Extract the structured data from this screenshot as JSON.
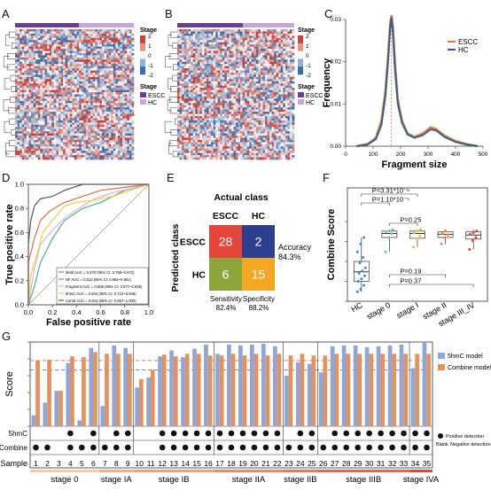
{
  "panels": {
    "A": {
      "label": "A",
      "legend_title": "Stage",
      "scale_ticks": [
        "2",
        "1",
        "0",
        "-1",
        "-2"
      ],
      "group_title": "Stage",
      "groups": [
        "ESCC",
        "HC"
      ]
    },
    "B": {
      "label": "B",
      "legend_title": "Stage",
      "scale_ticks": [
        "2",
        "1",
        "0",
        "-1",
        "-2"
      ],
      "group_title": "Stage",
      "groups": [
        "ESCC",
        "HC"
      ]
    },
    "C": {
      "label": "C"
    },
    "D": {
      "label": "D"
    },
    "E": {
      "label": "E"
    },
    "F": {
      "label": "F"
    },
    "G": {
      "label": "G"
    }
  },
  "colors": {
    "escc": "#e8762f",
    "hc": "#2e5c86",
    "stage_escc": "#6b3f8f",
    "stage_hc": "#c9a6d6",
    "hm_red": "#c8443a",
    "hm_blue": "#3c6ea8",
    "g_5hmc": "#8fa6da",
    "g_combine": "#e3925c"
  },
  "chart_data": [
    {
      "panel": "C",
      "type": "line",
      "xlabel": "Fragment size",
      "ylabel": "Frequency",
      "xlim": [
        0,
        500
      ],
      "ylim": [
        0,
        0.03
      ],
      "xticks": [
        "0",
        "100",
        "200",
        "300",
        "400",
        "500"
      ],
      "yticks": [
        "0.00",
        "0.01",
        "0.02",
        "0.03"
      ],
      "series": [
        {
          "name": "ESCC",
          "color": "#e8762f",
          "points": [
            [
              40,
              0
            ],
            [
              80,
              0.0005
            ],
            [
              110,
              0.002
            ],
            [
              130,
              0.006
            ],
            [
              145,
              0.013
            ],
            [
              155,
              0.022
            ],
            [
              162,
              0.029
            ],
            [
              167,
              0.031
            ],
            [
              172,
              0.028
            ],
            [
              180,
              0.019
            ],
            [
              190,
              0.011
            ],
            [
              205,
              0.006
            ],
            [
              225,
              0.003
            ],
            [
              250,
              0.0022
            ],
            [
              280,
              0.003
            ],
            [
              310,
              0.0045
            ],
            [
              330,
              0.004
            ],
            [
              360,
              0.0025
            ],
            [
              400,
              0.0012
            ],
            [
              440,
              0.0005
            ],
            [
              480,
              0
            ]
          ]
        },
        {
          "name": "HC",
          "color": "#2e5c86",
          "points": [
            [
              40,
              0
            ],
            [
              80,
              0.0004
            ],
            [
              110,
              0.0017
            ],
            [
              130,
              0.005
            ],
            [
              145,
              0.012
            ],
            [
              155,
              0.021
            ],
            [
              162,
              0.028
            ],
            [
              167,
              0.0305
            ],
            [
              172,
              0.027
            ],
            [
              180,
              0.018
            ],
            [
              190,
              0.01
            ],
            [
              205,
              0.0055
            ],
            [
              225,
              0.0028
            ],
            [
              250,
              0.002
            ],
            [
              280,
              0.0026
            ],
            [
              310,
              0.004
            ],
            [
              330,
              0.0037
            ],
            [
              360,
              0.0022
            ],
            [
              400,
              0.001
            ],
            [
              440,
              0.0004
            ],
            [
              480,
              0
            ]
          ]
        }
      ]
    },
    {
      "panel": "D",
      "type": "line",
      "xlabel": "False positive rate",
      "ylabel": "True positive rate",
      "xlim": [
        0,
        1
      ],
      "ylim": [
        0,
        1
      ],
      "xticks": [
        "0.0",
        "0.2",
        "0.4",
        "0.6",
        "0.8",
        "1.0"
      ],
      "yticks": [
        "0.0",
        "0.2",
        "0.4",
        "0.6",
        "0.8",
        "1.0"
      ],
      "series": [
        {
          "name": "Motif AUC = 0.870 (95% CI: 0.768~0.972)",
          "color": "#e06a4a",
          "points": [
            [
              0,
              0
            ],
            [
              0,
              0.35
            ],
            [
              0.05,
              0.55
            ],
            [
              0.1,
              0.7
            ],
            [
              0.18,
              0.78
            ],
            [
              0.3,
              0.85
            ],
            [
              0.45,
              0.9
            ],
            [
              0.6,
              0.95
            ],
            [
              1,
              1
            ]
          ]
        },
        {
          "name": "NF AUC = 0.813 (95% CI: 0.665~0.961)",
          "color": "#4caf8a",
          "points": [
            [
              0,
              0
            ],
            [
              0.05,
              0.15
            ],
            [
              0.1,
              0.35
            ],
            [
              0.2,
              0.55
            ],
            [
              0.3,
              0.7
            ],
            [
              0.45,
              0.8
            ],
            [
              0.6,
              0.85
            ],
            [
              0.8,
              0.95
            ],
            [
              1,
              1
            ]
          ]
        },
        {
          "name": "Fragment AUC = 0.806 (95% CI: 0.677~0.936)",
          "color": "#d6b3e0",
          "points": [
            [
              0,
              0
            ],
            [
              0.05,
              0.3
            ],
            [
              0.1,
              0.5
            ],
            [
              0.2,
              0.62
            ],
            [
              0.3,
              0.72
            ],
            [
              0.45,
              0.82
            ],
            [
              0.55,
              0.88
            ],
            [
              0.7,
              0.93
            ],
            [
              1,
              1
            ]
          ]
        },
        {
          "name": "5hmC AUC = 0.834 (95% CI: 0.723~0.945)",
          "color": "#f2cf3b",
          "points": [
            [
              0,
              0
            ],
            [
              0.02,
              0.25
            ],
            [
              0.08,
              0.45
            ],
            [
              0.12,
              0.6
            ],
            [
              0.2,
              0.7
            ],
            [
              0.3,
              0.82
            ],
            [
              0.4,
              0.85
            ],
            [
              0.55,
              0.87
            ],
            [
              0.7,
              0.9
            ],
            [
              1,
              1
            ]
          ]
        },
        {
          "name": "Comb AUC = 0.934 (95% CI: 0.867~1.000)",
          "color": "#555555",
          "points": [
            [
              0,
              0
            ],
            [
              0,
              0.5
            ],
            [
              0.02,
              0.7
            ],
            [
              0.05,
              0.82
            ],
            [
              0.1,
              0.88
            ],
            [
              0.2,
              0.9
            ],
            [
              0.3,
              0.95
            ],
            [
              0.45,
              1
            ],
            [
              1,
              1
            ]
          ]
        }
      ]
    },
    {
      "panel": "E",
      "type": "table",
      "title": "Actual class",
      "row_title": "Predicted class",
      "columns": [
        "ESCC",
        "HC"
      ],
      "rows": [
        "ESCC",
        "HC"
      ],
      "cells": [
        [
          28,
          2
        ],
        [
          6,
          15
        ]
      ],
      "cell_colors": [
        [
          "#e5463b",
          "#2f3f8f"
        ],
        [
          "#8aa63b",
          "#f5a623"
        ]
      ],
      "accuracy_label": "Accuracy",
      "accuracy": "84.3%",
      "sensitivity_label": "Sensitivity",
      "sensitivity": "82.4%",
      "specificity_label": "Specificity",
      "specificity": "88.2%"
    },
    {
      "panel": "F",
      "type": "scatter",
      "ylabel": "Combine Score",
      "categories": [
        "HC",
        "stage 0",
        "stage I",
        "stage II",
        "stage III_IV"
      ],
      "ylim": [
        0,
        1
      ],
      "yticks": [
        "0.00",
        "0.25",
        "0.50",
        "0.75",
        "1.00"
      ],
      "boxes": [
        {
          "q1": 0.25,
          "median": 0.37,
          "q3": 0.5,
          "low": 0.12,
          "high": 0.8,
          "color": "#3b8ecf",
          "points": [
            0.12,
            0.15,
            0.2,
            0.25,
            0.28,
            0.32,
            0.35,
            0.38,
            0.42,
            0.48,
            0.55,
            0.62,
            0.72,
            0.8
          ]
        },
        {
          "q1": 0.8,
          "median": 0.85,
          "q3": 0.88,
          "low": 0.62,
          "high": 0.9,
          "color": "#7cc48a",
          "points": [
            0.62,
            0.8,
            0.85,
            0.87,
            0.88,
            0.9
          ]
        },
        {
          "q1": 0.79,
          "median": 0.85,
          "q3": 0.88,
          "low": 0.68,
          "high": 0.9,
          "color": "#f2c23a",
          "points": [
            0.68,
            0.78,
            0.82,
            0.86,
            0.88,
            0.9
          ]
        },
        {
          "q1": 0.8,
          "median": 0.84,
          "q3": 0.87,
          "low": 0.72,
          "high": 0.9,
          "color": "#f0873a",
          "points": [
            0.72,
            0.8,
            0.83,
            0.85,
            0.88
          ]
        },
        {
          "q1": 0.78,
          "median": 0.83,
          "q3": 0.87,
          "low": 0.65,
          "high": 0.9,
          "color": "#d9483b",
          "points": [
            0.65,
            0.76,
            0.8,
            0.84,
            0.86,
            0.88
          ]
        }
      ],
      "comparisons": [
        {
          "from": 0,
          "to": 1,
          "label": "P=1.10*10⁻⁵"
        },
        {
          "from": 0,
          "to": 2,
          "label": "P=3.31*10⁻⁶"
        },
        {
          "from": 1,
          "to": 2,
          "label": "P=0.25"
        },
        {
          "from": 1,
          "to": 3,
          "label": "P=0.19"
        },
        {
          "from": 1,
          "to": 4,
          "label": "P=0.37"
        }
      ]
    },
    {
      "panel": "G",
      "type": "bar",
      "ylabel": "Score",
      "ylim": [
        0,
        1
      ],
      "yticks": [
        "0.0",
        "0.2",
        "0.4",
        "0.6",
        "0.8",
        "1.0"
      ],
      "thresholds": [
        {
          "value": 0.78,
          "color": "#d9483b"
        },
        {
          "value": 0.67,
          "color": "#3b5bb3"
        }
      ],
      "categories": [
        "1",
        "2",
        "3",
        "4",
        "5",
        "6",
        "7",
        "8",
        "9",
        "10",
        "11",
        "12",
        "13",
        "14",
        "15",
        "16",
        "17",
        "18",
        "19",
        "20",
        "21",
        "22",
        "23",
        "24",
        "25",
        "26",
        "27",
        "28",
        "29",
        "30",
        "31",
        "32",
        "33",
        "34",
        "35"
      ],
      "series": [
        {
          "name": "5hmC model",
          "color": "#8fa6da",
          "values": [
            0.13,
            0.28,
            0.42,
            0.75,
            0.07,
            0.93,
            0.24,
            0.96,
            0.93,
            0.46,
            0.58,
            0.83,
            0.9,
            0.82,
            0.92,
            0.97,
            0.86,
            0.97,
            0.96,
            0.97,
            0.98,
            0.95,
            0.6,
            0.76,
            0.74,
            0.64,
            0.95,
            0.96,
            0.96,
            0.94,
            0.95,
            0.96,
            0.97,
            0.69,
            0.99
          ]
        },
        {
          "name": "Combine model",
          "color": "#e3925c",
          "values": [
            0.78,
            0.79,
            0.42,
            0.83,
            0.82,
            0.88,
            0.86,
            0.86,
            0.86,
            0.56,
            0.67,
            0.85,
            0.83,
            0.86,
            0.86,
            0.84,
            0.84,
            0.86,
            0.84,
            0.86,
            0.84,
            0.86,
            0.84,
            0.86,
            0.84,
            0.84,
            0.86,
            0.86,
            0.86,
            0.86,
            0.86,
            0.86,
            0.86,
            0.86,
            0.86
          ]
        }
      ],
      "detect_rows": [
        "5hmC",
        "Combine"
      ],
      "detect_5hmc": [
        0,
        0,
        0,
        1,
        0,
        1,
        0,
        1,
        1,
        0,
        0,
        1,
        1,
        1,
        1,
        1,
        1,
        1,
        1,
        1,
        1,
        1,
        0,
        1,
        1,
        0,
        1,
        1,
        1,
        1,
        1,
        1,
        1,
        1,
        1
      ],
      "detect_combine": [
        1,
        1,
        0,
        1,
        1,
        1,
        1,
        1,
        1,
        0,
        0,
        1,
        1,
        1,
        1,
        1,
        1,
        1,
        1,
        1,
        1,
        1,
        1,
        1,
        1,
        1,
        1,
        1,
        1,
        1,
        1,
        1,
        1,
        1,
        1
      ],
      "sample_label": "Sample",
      "legend_positive": "Positive detection",
      "legend_blank": "Blank",
      "legend_negative": "Negative detection",
      "stages": [
        {
          "name": "stage 0",
          "start": 1,
          "end": 6,
          "color": "#f6c9a8"
        },
        {
          "name": "stage IA",
          "start": 7,
          "end": 9,
          "color": "#f4b08a"
        },
        {
          "name": "stage IB",
          "start": 10,
          "end": 16,
          "color": "#f2a07a"
        },
        {
          "name": "stage IIA",
          "start": 17,
          "end": 22,
          "color": "#ef8a68"
        },
        {
          "name": "stage IIB",
          "start": 23,
          "end": 25,
          "color": "#ec7a5a"
        },
        {
          "name": "stage IIIB",
          "start": 26,
          "end": 33,
          "color": "#e5644c"
        },
        {
          "name": "stage IVA",
          "start": 34,
          "end": 35,
          "color": "#d9483b"
        }
      ]
    }
  ]
}
